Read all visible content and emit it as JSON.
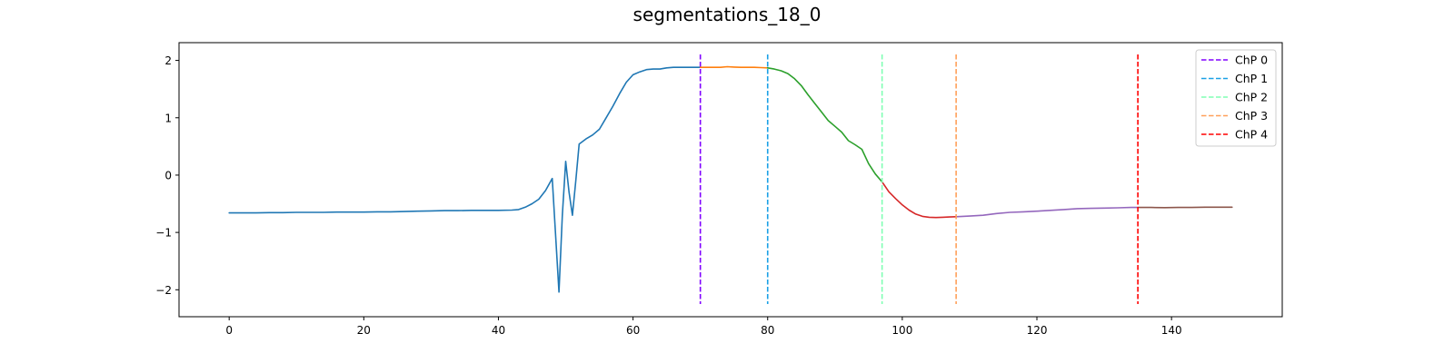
{
  "chart_data": {
    "type": "line",
    "title": "segmentations_18_0",
    "xlabel": "",
    "ylabel": "",
    "xlim": [
      -7.45,
      156.45
    ],
    "ylim": [
      -2.47,
      2.31
    ],
    "xticks": [
      0,
      20,
      40,
      60,
      80,
      100,
      120,
      140
    ],
    "yticks": [
      -2,
      -1,
      0,
      1,
      2
    ],
    "grid": false,
    "legend_position": "top-right",
    "series": [
      {
        "color": "#1f77b4",
        "x": [
          0,
          2,
          4,
          6,
          8,
          10,
          12,
          14,
          16,
          18,
          20,
          22,
          24,
          26,
          28,
          30,
          32,
          34,
          36,
          38,
          40,
          42,
          43,
          44,
          45,
          46,
          47,
          48,
          49,
          49.5,
          50,
          50.5,
          51,
          51.5,
          52,
          53,
          54,
          55,
          56,
          57,
          58,
          59,
          60,
          61,
          62,
          63,
          64,
          65,
          66,
          67,
          68,
          69,
          70
        ],
        "y": [
          -0.66,
          -0.66,
          -0.66,
          -0.655,
          -0.655,
          -0.65,
          -0.65,
          -0.65,
          -0.645,
          -0.645,
          -0.645,
          -0.64,
          -0.64,
          -0.635,
          -0.63,
          -0.625,
          -0.62,
          -0.62,
          -0.615,
          -0.615,
          -0.615,
          -0.61,
          -0.6,
          -0.56,
          -0.5,
          -0.42,
          -0.27,
          -0.06,
          -2.04,
          -0.7,
          0.24,
          -0.3,
          -0.7,
          -0.1,
          0.54,
          0.63,
          0.7,
          0.8,
          1.0,
          1.2,
          1.42,
          1.62,
          1.75,
          1.8,
          1.84,
          1.85,
          1.85,
          1.87,
          1.88,
          1.88,
          1.88,
          1.88,
          1.88
        ]
      },
      {
        "color": "#ff7f0e",
        "x": [
          70,
          71,
          72,
          73,
          74,
          75,
          76,
          77,
          78,
          79,
          80
        ],
        "y": [
          1.88,
          1.88,
          1.88,
          1.88,
          1.89,
          1.885,
          1.88,
          1.88,
          1.88,
          1.875,
          1.87
        ]
      },
      {
        "color": "#2ca02c",
        "x": [
          80,
          81,
          82,
          83,
          84,
          85,
          86,
          87,
          88,
          89,
          90,
          91,
          92,
          93,
          94,
          95,
          96,
          97
        ],
        "y": [
          1.87,
          1.85,
          1.82,
          1.77,
          1.68,
          1.56,
          1.4,
          1.25,
          1.1,
          0.95,
          0.85,
          0.75,
          0.6,
          0.53,
          0.45,
          0.2,
          0.02,
          -0.12
        ]
      },
      {
        "color": "#d62728",
        "x": [
          97,
          98,
          99,
          100,
          101,
          102,
          103,
          104,
          105,
          106,
          107,
          108
        ],
        "y": [
          -0.12,
          -0.29,
          -0.41,
          -0.52,
          -0.61,
          -0.68,
          -0.72,
          -0.735,
          -0.74,
          -0.735,
          -0.73,
          -0.725
        ]
      },
      {
        "color": "#9467bd",
        "x": [
          108,
          110,
          112,
          114,
          116,
          118,
          120,
          122,
          124,
          126,
          128,
          130,
          132,
          134,
          135
        ],
        "y": [
          -0.725,
          -0.715,
          -0.7,
          -0.67,
          -0.65,
          -0.64,
          -0.63,
          -0.615,
          -0.6,
          -0.585,
          -0.58,
          -0.575,
          -0.57,
          -0.565,
          -0.565
        ]
      },
      {
        "color": "#8c564b",
        "x": [
          135,
          137,
          139,
          141,
          143,
          145,
          147,
          149
        ],
        "y": [
          -0.565,
          -0.565,
          -0.568,
          -0.565,
          -0.565,
          -0.56,
          -0.56,
          -0.56
        ]
      }
    ],
    "changepoints": [
      {
        "name": "ChP 0",
        "x": 70,
        "color": "#8000ff"
      },
      {
        "name": "ChP 1",
        "x": 80,
        "color": "#1aa0e6"
      },
      {
        "name": "ChP 2",
        "x": 97,
        "color": "#80ffb4"
      },
      {
        "name": "ChP 3",
        "x": 108,
        "color": "#ffa05a"
      },
      {
        "name": "ChP 4",
        "x": 135,
        "color": "#ff0000"
      }
    ]
  }
}
